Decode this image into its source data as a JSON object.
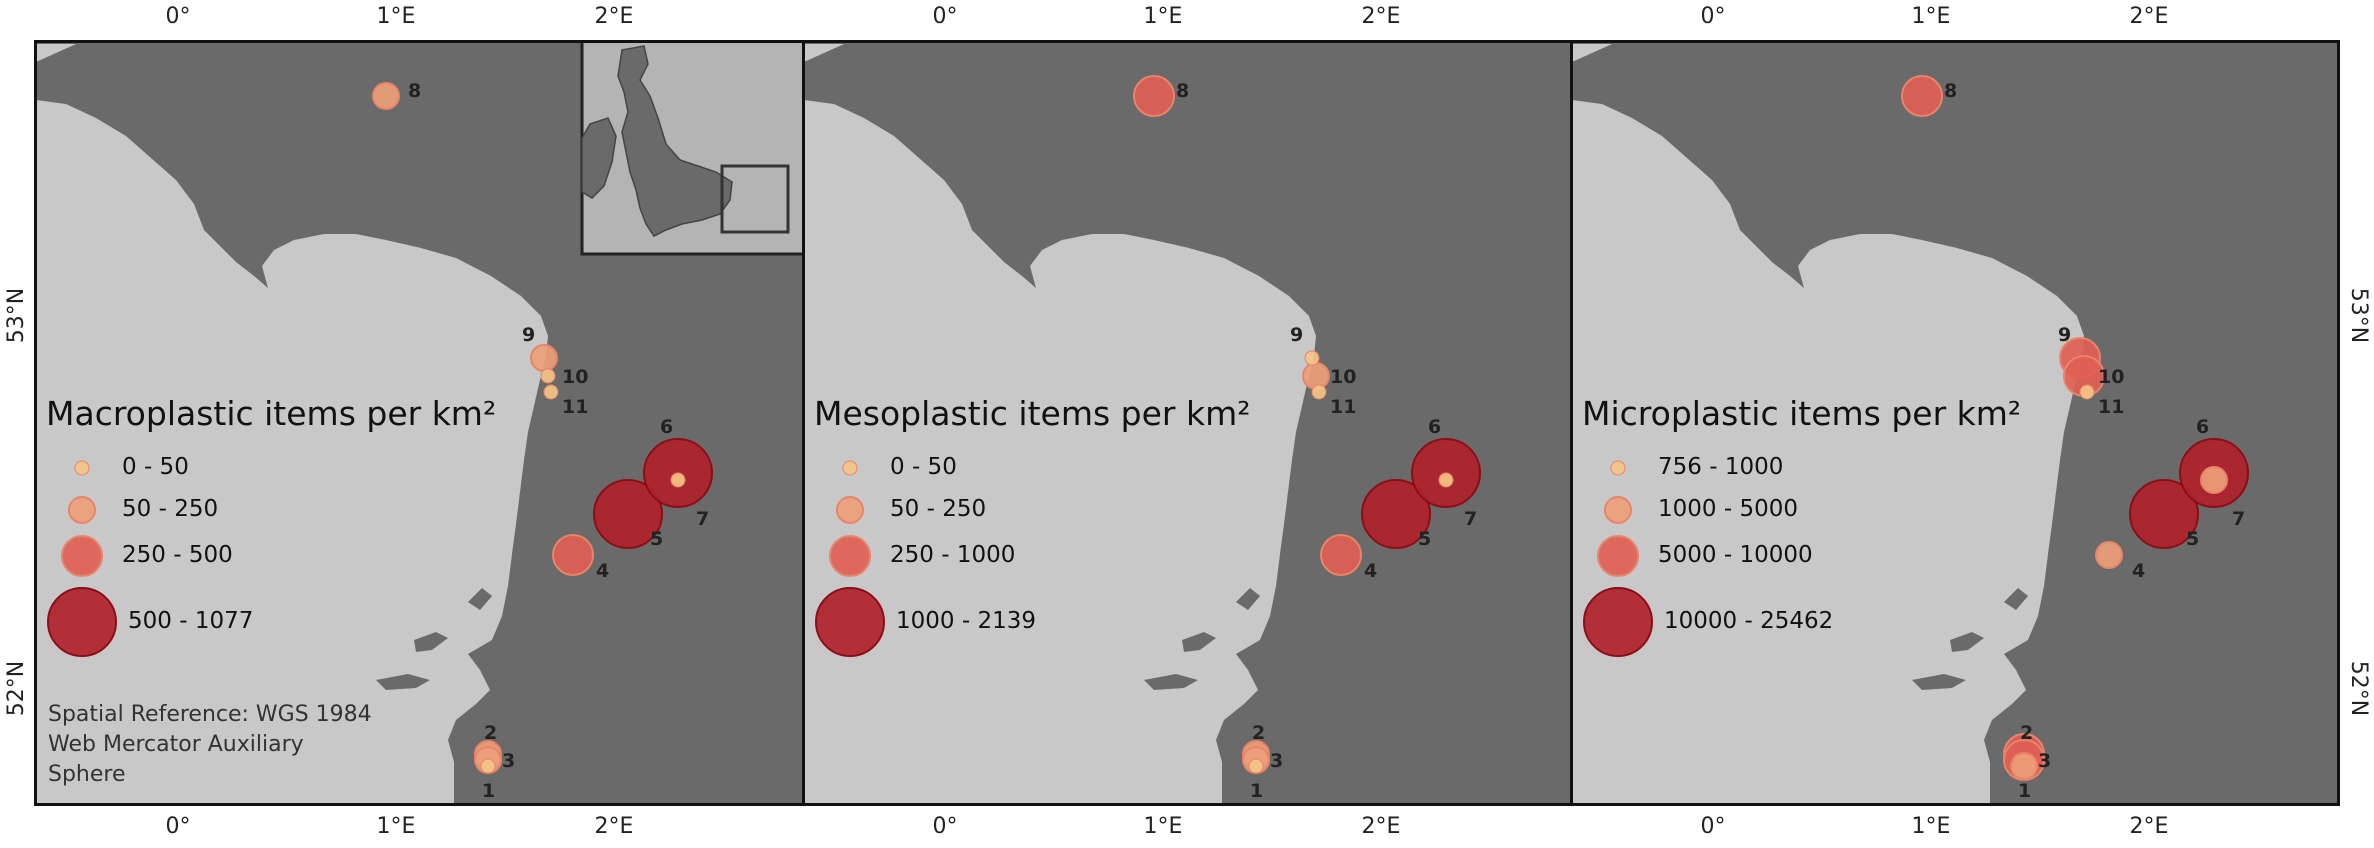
{
  "map": {
    "axes": {
      "lon_ticks": [
        "0°",
        "1°E",
        "2°E"
      ],
      "lat_ticks": [
        "53°N",
        "52°N"
      ]
    },
    "colors": {
      "sea": "#6a6a6a",
      "land": "#c8c8c8",
      "class_colors": [
        "#f5c487",
        "#eda078",
        "#df6055",
        "#b0222a"
      ]
    },
    "site_labels": [
      "1",
      "2",
      "3",
      "4",
      "5",
      "6",
      "7",
      "8",
      "9",
      "10",
      "11"
    ],
    "panels": [
      {
        "id": "macro",
        "legend_title": "Macroplastic items per km²",
        "classes": [
          "0 - 50",
          "50 - 250",
          "250 - 500",
          "500 - 1077"
        ],
        "site_class": [
          0,
          1,
          1,
          2,
          3,
          3,
          0,
          1,
          1,
          0,
          0
        ],
        "spatial_reference": [
          "Spatial Reference: WGS 1984",
          "Web Mercator Auxiliary",
          "Sphere"
        ],
        "has_inset": true
      },
      {
        "id": "meso",
        "legend_title": "Mesoplastic items per km²",
        "classes": [
          "0 - 50",
          "50 - 250",
          "250 - 1000",
          "1000 - 2139"
        ],
        "site_class": [
          0,
          1,
          1,
          2,
          3,
          3,
          0,
          2,
          0,
          1,
          0
        ],
        "has_inset": false
      },
      {
        "id": "micro",
        "legend_title": "Microplastic items per km²",
        "classes": [
          "756 - 1000",
          "1000 - 5000",
          "5000 - 10000",
          "10000 - 25462"
        ],
        "site_class": [
          1,
          2,
          2,
          1,
          3,
          3,
          1,
          2,
          2,
          2,
          0
        ],
        "has_inset": false
      }
    ]
  }
}
